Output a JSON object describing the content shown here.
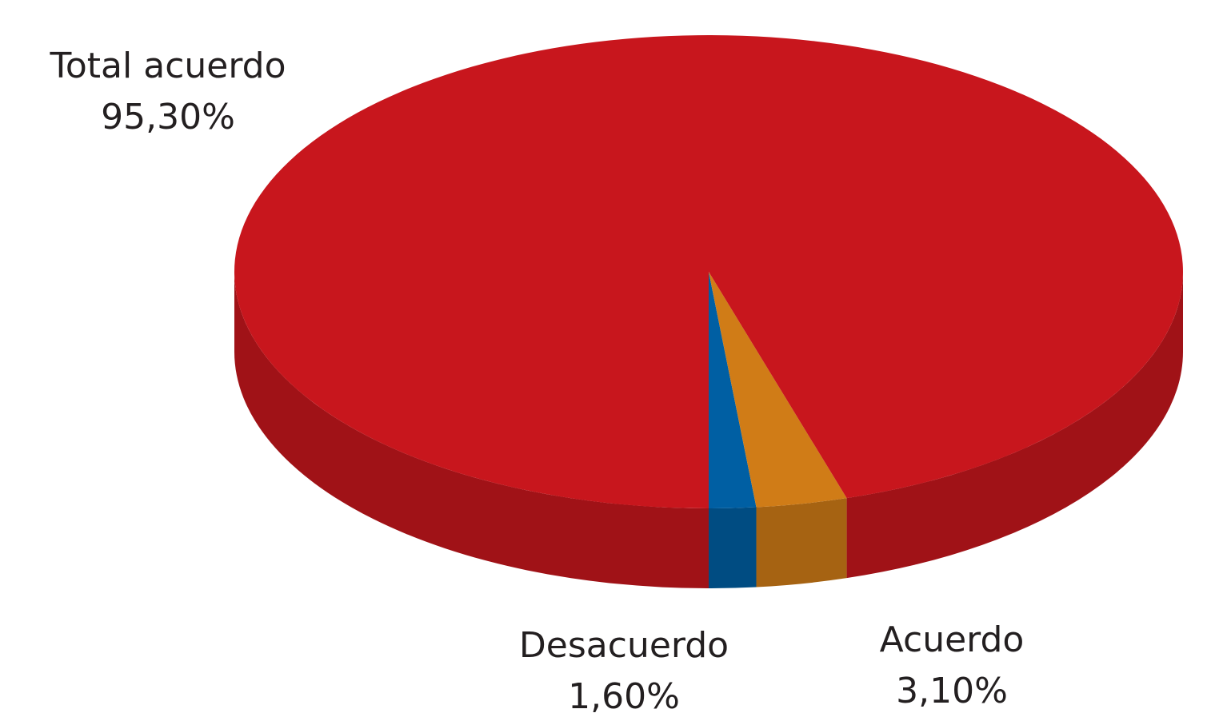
{
  "chart_data": {
    "type": "pie",
    "categories": [
      "Desacuerdo",
      "Acuerdo",
      "Total acuerdo"
    ],
    "values": [
      1.6,
      3.1,
      95.3
    ],
    "value_labels": [
      "1,60%",
      "3,10%",
      "95,30%"
    ],
    "colors": [
      "#005fa3",
      "#d07c17",
      "#c8161d"
    ]
  }
}
